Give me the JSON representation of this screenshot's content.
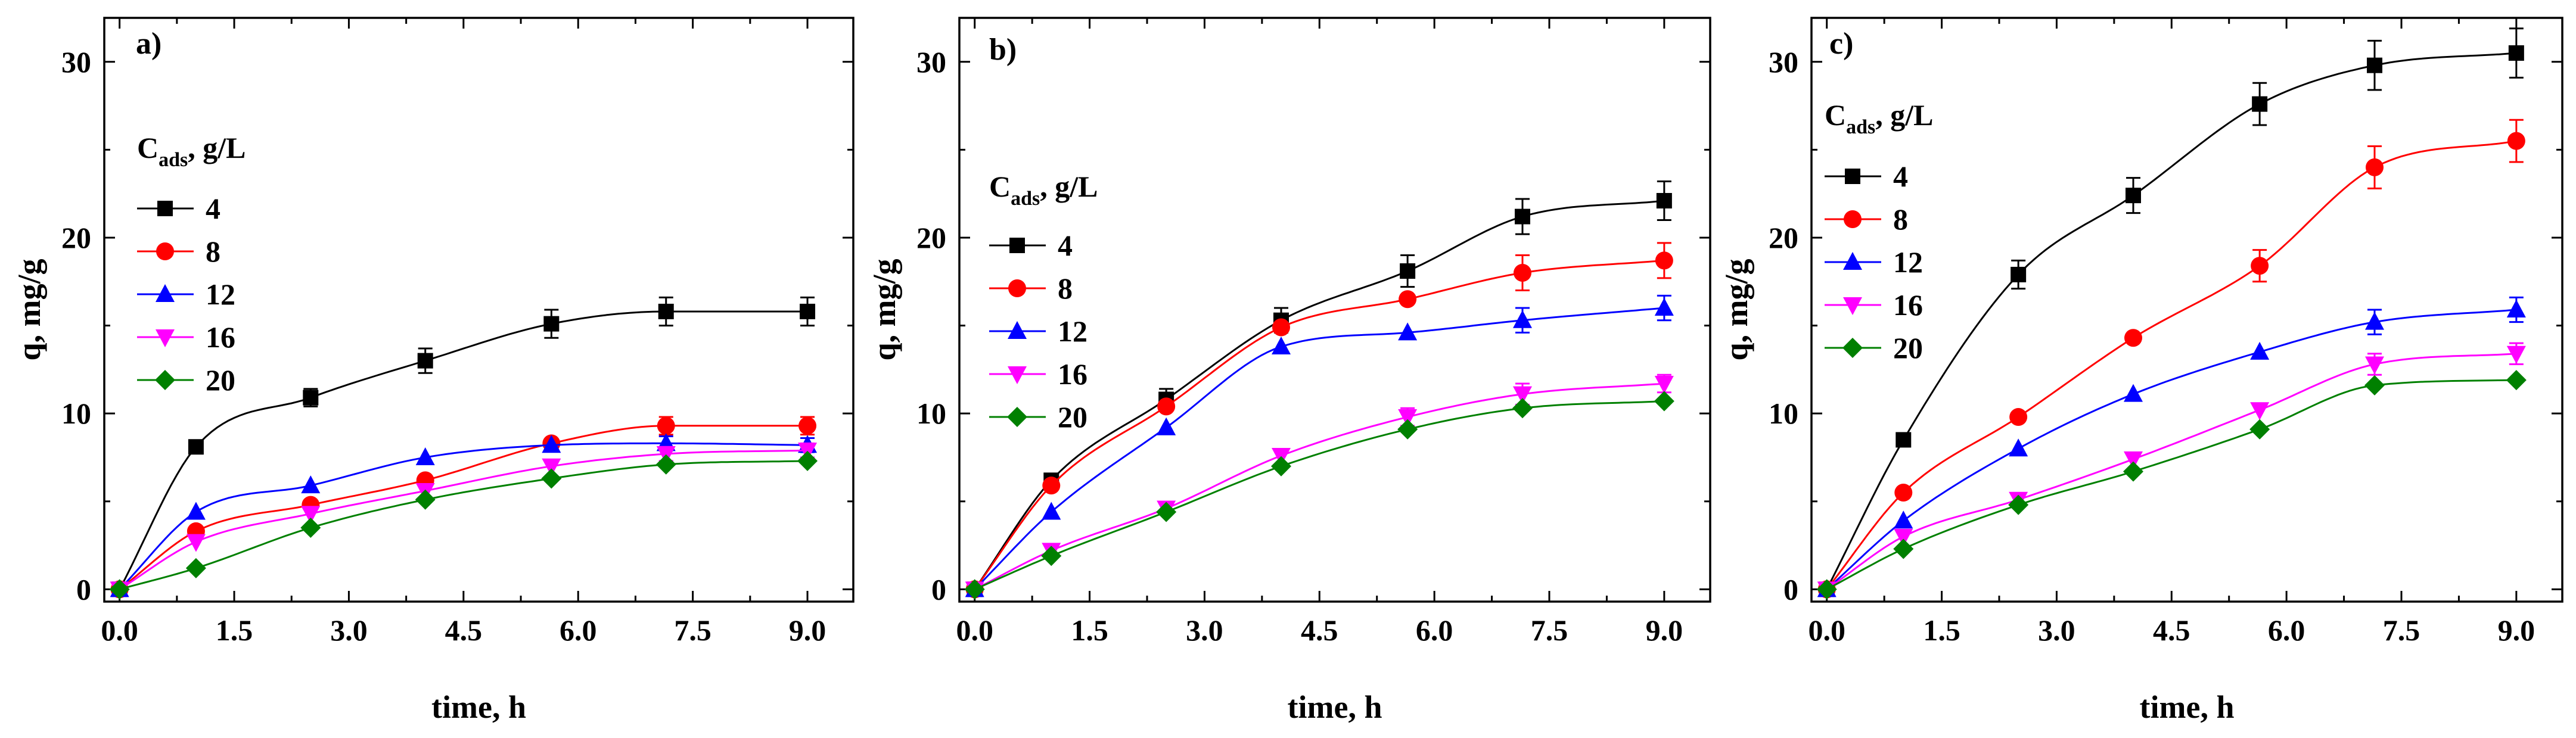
{
  "chart_data": [
    {
      "type": "scatter",
      "panel_label": "a)",
      "xlabel": "time, h",
      "ylabel": "q, mg/g",
      "xlim": [
        -0.2,
        9.6
      ],
      "ylim": [
        -0.7,
        32.5
      ],
      "xticks": [
        "0.0",
        "1.5",
        "3.0",
        "4.5",
        "6.0",
        "7.5",
        "9.0"
      ],
      "yticks": [
        "0",
        "10",
        "20",
        "30"
      ],
      "legend": {
        "title_main": "C",
        "title_sub": "ads",
        "title_unit": ", g/L",
        "placement": "left"
      },
      "x": [
        0,
        1,
        2.5,
        4,
        5.65,
        7.15,
        9
      ],
      "series": [
        {
          "name": "4",
          "color": "#000000",
          "marker": "square",
          "values": [
            0,
            8.1,
            10.9,
            13.0,
            15.1,
            15.8,
            15.8
          ],
          "errors": [
            0,
            0,
            0.5,
            0.7,
            0.8,
            0.8,
            0.8
          ]
        },
        {
          "name": "8",
          "color": "#ff0000",
          "marker": "circle",
          "values": [
            0,
            3.3,
            4.8,
            6.2,
            8.3,
            9.3,
            9.3
          ],
          "errors": [
            0,
            0,
            0,
            0,
            0,
            0.5,
            0.5
          ]
        },
        {
          "name": "12",
          "color": "#0000ff",
          "marker": "triangle-up",
          "values": [
            0,
            4.4,
            5.9,
            7.5,
            8.2,
            8.3,
            8.2
          ],
          "errors": [
            0,
            0,
            0,
            0,
            0,
            0.4,
            0.4
          ]
        },
        {
          "name": "16",
          "color": "#ff00ff",
          "marker": "triangle-down",
          "values": [
            0,
            2.7,
            4.3,
            5.6,
            7.0,
            7.7,
            7.9
          ],
          "errors": [
            0,
            0,
            0,
            0,
            0,
            0.4,
            0.4
          ]
        },
        {
          "name": "20",
          "color": "#008000",
          "marker": "diamond",
          "values": [
            0,
            1.2,
            3.5,
            5.1,
            6.3,
            7.1,
            7.3
          ],
          "errors": [
            0,
            0,
            0,
            0,
            0,
            0,
            0
          ]
        }
      ]
    },
    {
      "type": "scatter",
      "panel_label": "b)",
      "xlabel": "time, h",
      "ylabel": "q, mg/g",
      "xlim": [
        -0.2,
        9.6
      ],
      "ylim": [
        -0.7,
        32.5
      ],
      "xticks": [
        "0.0",
        "1.5",
        "3.0",
        "4.5",
        "6.0",
        "7.5",
        "9.0"
      ],
      "yticks": [
        "0",
        "10",
        "20",
        "30"
      ],
      "legend": {
        "title_main": "C",
        "title_sub": "ads",
        "title_unit": ", g/L",
        "placement": "left"
      },
      "x": [
        0,
        1,
        2.5,
        4,
        5.65,
        7.15,
        9
      ],
      "series": [
        {
          "name": "4",
          "color": "#000000",
          "marker": "square",
          "values": [
            0,
            6.2,
            10.8,
            15.3,
            18.1,
            21.2,
            22.1
          ],
          "errors": [
            0,
            0,
            0.6,
            0.7,
            0.9,
            1.0,
            1.1
          ]
        },
        {
          "name": "8",
          "color": "#ff0000",
          "marker": "circle",
          "values": [
            0,
            5.9,
            10.4,
            14.9,
            16.5,
            18.0,
            18.7
          ],
          "errors": [
            0,
            0,
            0,
            0,
            0,
            1.0,
            1.0
          ]
        },
        {
          "name": "12",
          "color": "#0000ff",
          "marker": "triangle-up",
          "values": [
            0,
            4.4,
            9.2,
            13.8,
            14.6,
            15.3,
            16.0
          ],
          "errors": [
            0,
            0,
            0,
            0,
            0,
            0.7,
            0.7
          ]
        },
        {
          "name": "16",
          "color": "#ff00ff",
          "marker": "triangle-down",
          "values": [
            0,
            2.2,
            4.6,
            7.6,
            9.8,
            11.1,
            11.7
          ],
          "errors": [
            0,
            0,
            0,
            0,
            0.5,
            0.6,
            0.5
          ]
        },
        {
          "name": "20",
          "color": "#008000",
          "marker": "diamond",
          "values": [
            0,
            1.9,
            4.4,
            7.0,
            9.1,
            10.3,
            10.7
          ],
          "errors": [
            0,
            0,
            0,
            0,
            0,
            0,
            0
          ]
        }
      ]
    },
    {
      "type": "scatter",
      "panel_label": "c)",
      "xlabel": "time, h",
      "ylabel": "q, mg/g",
      "xlim": [
        -0.2,
        9.6
      ],
      "ylim": [
        -0.7,
        32.5
      ],
      "xticks": [
        "0.0",
        "1.5",
        "3.0",
        "4.5",
        "6.0",
        "7.5",
        "9.0"
      ],
      "yticks": [
        "0",
        "10",
        "20",
        "30"
      ],
      "legend": {
        "title_main": "C",
        "title_sub": "ads",
        "title_unit": ", g/L",
        "placement": "top-left"
      },
      "x": [
        0,
        1,
        2.5,
        4,
        5.65,
        7.15,
        9
      ],
      "series": [
        {
          "name": "4",
          "color": "#000000",
          "marker": "square",
          "values": [
            0,
            8.5,
            17.9,
            22.4,
            27.6,
            29.8,
            30.5
          ],
          "errors": [
            0,
            0,
            0.8,
            1.0,
            1.2,
            1.4,
            1.4
          ]
        },
        {
          "name": "8",
          "color": "#ff0000",
          "marker": "circle",
          "values": [
            0,
            5.5,
            9.8,
            14.3,
            18.4,
            24.0,
            25.5
          ],
          "errors": [
            0,
            0,
            0,
            0,
            0.9,
            1.2,
            1.2
          ]
        },
        {
          "name": "12",
          "color": "#0000ff",
          "marker": "triangle-up",
          "values": [
            0,
            3.9,
            8.0,
            11.1,
            13.5,
            15.2,
            15.9
          ],
          "errors": [
            0,
            0,
            0,
            0,
            0,
            0.7,
            0.7
          ]
        },
        {
          "name": "16",
          "color": "#ff00ff",
          "marker": "triangle-down",
          "values": [
            0,
            3.0,
            5.1,
            7.4,
            10.2,
            12.8,
            13.4
          ],
          "errors": [
            0,
            0,
            0,
            0,
            0,
            0.6,
            0.6
          ]
        },
        {
          "name": "20",
          "color": "#008000",
          "marker": "diamond",
          "values": [
            0,
            2.3,
            4.8,
            6.7,
            9.1,
            11.6,
            11.9
          ],
          "errors": [
            0,
            0,
            0,
            0,
            0,
            0,
            0
          ]
        }
      ]
    }
  ]
}
